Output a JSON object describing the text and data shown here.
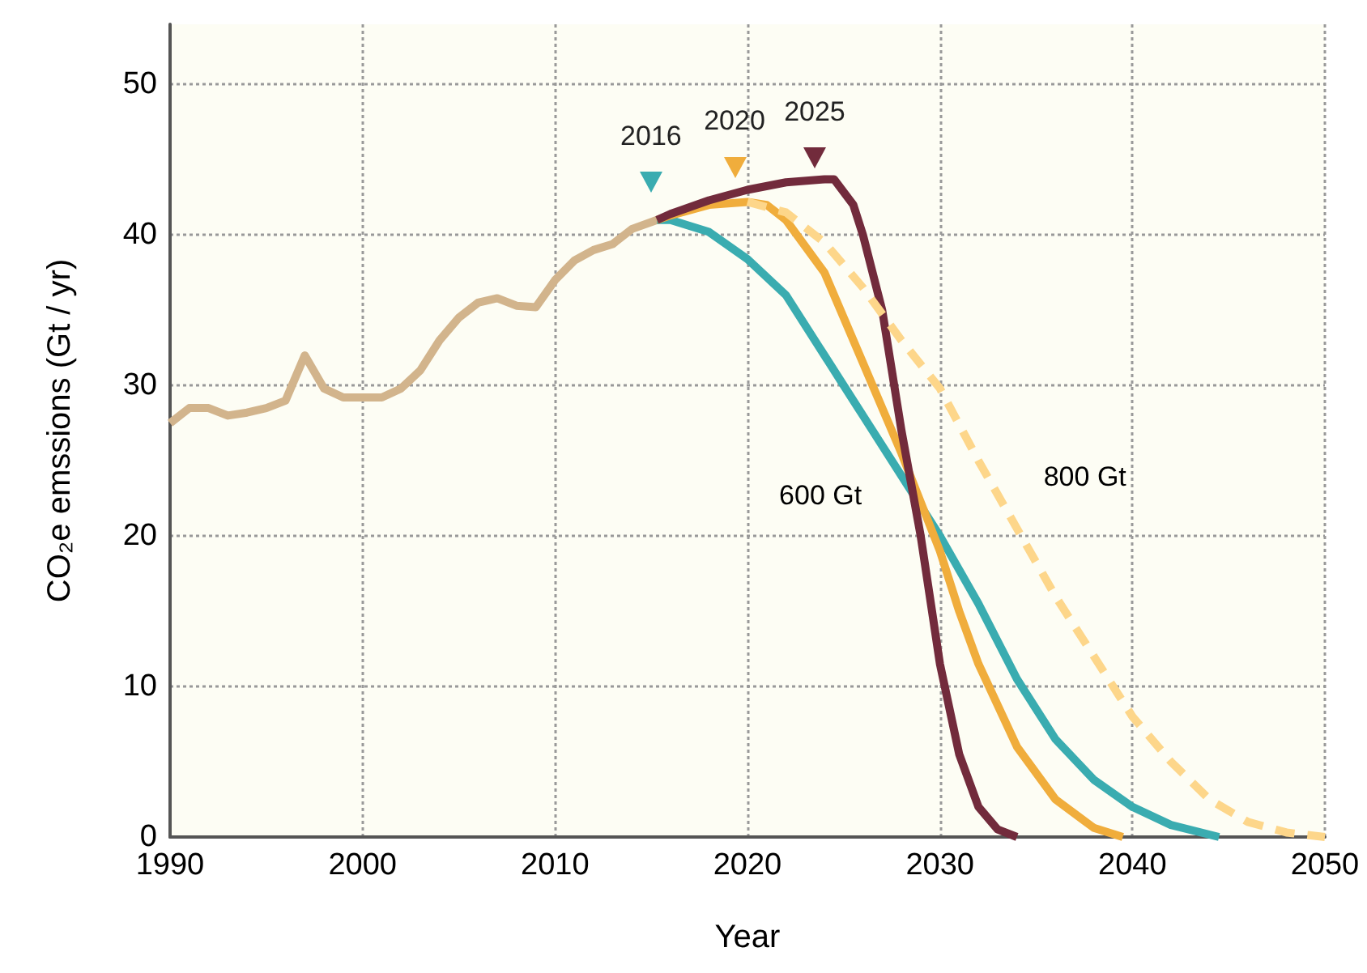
{
  "chart_data": {
    "type": "line",
    "xlabel": "Year",
    "ylabel": "CO₂e emssions (Gt / yr)",
    "xlim": [
      1990,
      2050
    ],
    "xticks": [
      1990,
      2000,
      2010,
      2020,
      2030,
      2040,
      2050
    ],
    "ylim": [
      0,
      54
    ],
    "yticks": [
      0,
      10,
      20,
      30,
      40,
      50
    ],
    "grid": true,
    "series": [
      {
        "color": "#d2b48c",
        "line_style": "solid",
        "x": [
          1990,
          1991,
          1992,
          1993,
          1994,
          1995,
          1996,
          1997,
          1998,
          1999,
          2000,
          2001,
          2002,
          2003,
          2004,
          2005,
          2006,
          2007,
          2008,
          2009,
          2010,
          2011,
          2012,
          2013,
          2014,
          2015.3
        ],
        "values": [
          27.5,
          28.5,
          28.5,
          28,
          28.2,
          28.5,
          29,
          32,
          29.8,
          29.2,
          29.2,
          29.2,
          29.8,
          31,
          33,
          34.5,
          35.5,
          35.8,
          35.3,
          35.2,
          37,
          38.3,
          39,
          39.4,
          40.4,
          41
        ]
      },
      {
        "color": "#3aacb0",
        "line_style": "solid",
        "x": [
          2015.3,
          2016,
          2018,
          2020,
          2022,
          2024,
          2025,
          2026,
          2028,
          2030,
          2032,
          2034,
          2036,
          2038,
          2040,
          2042,
          2044.5
        ],
        "values": [
          41,
          41,
          40.2,
          38.4,
          36,
          32,
          30,
          28,
          24,
          20,
          15.5,
          10.5,
          6.5,
          3.8,
          2,
          0.8,
          0
        ]
      },
      {
        "color": "#f0ad3c",
        "line_style": "solid",
        "x": [
          2015.3,
          2016,
          2018,
          2020,
          2021,
          2022,
          2024,
          2026,
          2028,
          2030,
          2031,
          2032,
          2034,
          2036,
          2038,
          2039.5
        ],
        "values": [
          41,
          41.3,
          42,
          42.2,
          42,
          41,
          37.5,
          31.5,
          25.5,
          19,
          15,
          11.5,
          6,
          2.5,
          0.6,
          0
        ]
      },
      {
        "color": "#722b3c",
        "line_style": "solid",
        "x": [
          2015.3,
          2016,
          2018,
          2020,
          2022,
          2024,
          2024.5,
          2025.5,
          2026,
          2027,
          2028,
          2029,
          2030,
          2031,
          2032,
          2033,
          2034
        ],
        "values": [
          41,
          41.4,
          42.3,
          43,
          43.5,
          43.7,
          43.7,
          42,
          40,
          35,
          27,
          20,
          11.5,
          5.5,
          2,
          0.5,
          0
        ]
      },
      {
        "color": "#fdd68a",
        "line_style": "dashed",
        "x": [
          2020,
          2022,
          2024,
          2026,
          2028,
          2030,
          2032,
          2034,
          2036,
          2038,
          2040,
          2042,
          2044,
          2046,
          2048,
          2050
        ],
        "values": [
          42.2,
          41.5,
          39.5,
          36.5,
          33,
          29.8,
          25,
          20.5,
          16,
          12,
          8,
          5,
          2.5,
          1,
          0.3,
          0
        ]
      }
    ],
    "annotations": [
      {
        "text": "2016",
        "x": 2016,
        "y": 41
      },
      {
        "text": "2020",
        "x": 2020,
        "y": 42.2
      },
      {
        "text": "2025",
        "x": 2024.5,
        "y": 43.7
      },
      {
        "text": "600 Gt",
        "x": 2028,
        "y": 24
      },
      {
        "text": "800 Gt",
        "x": 2034,
        "y": 20.5
      }
    ]
  }
}
